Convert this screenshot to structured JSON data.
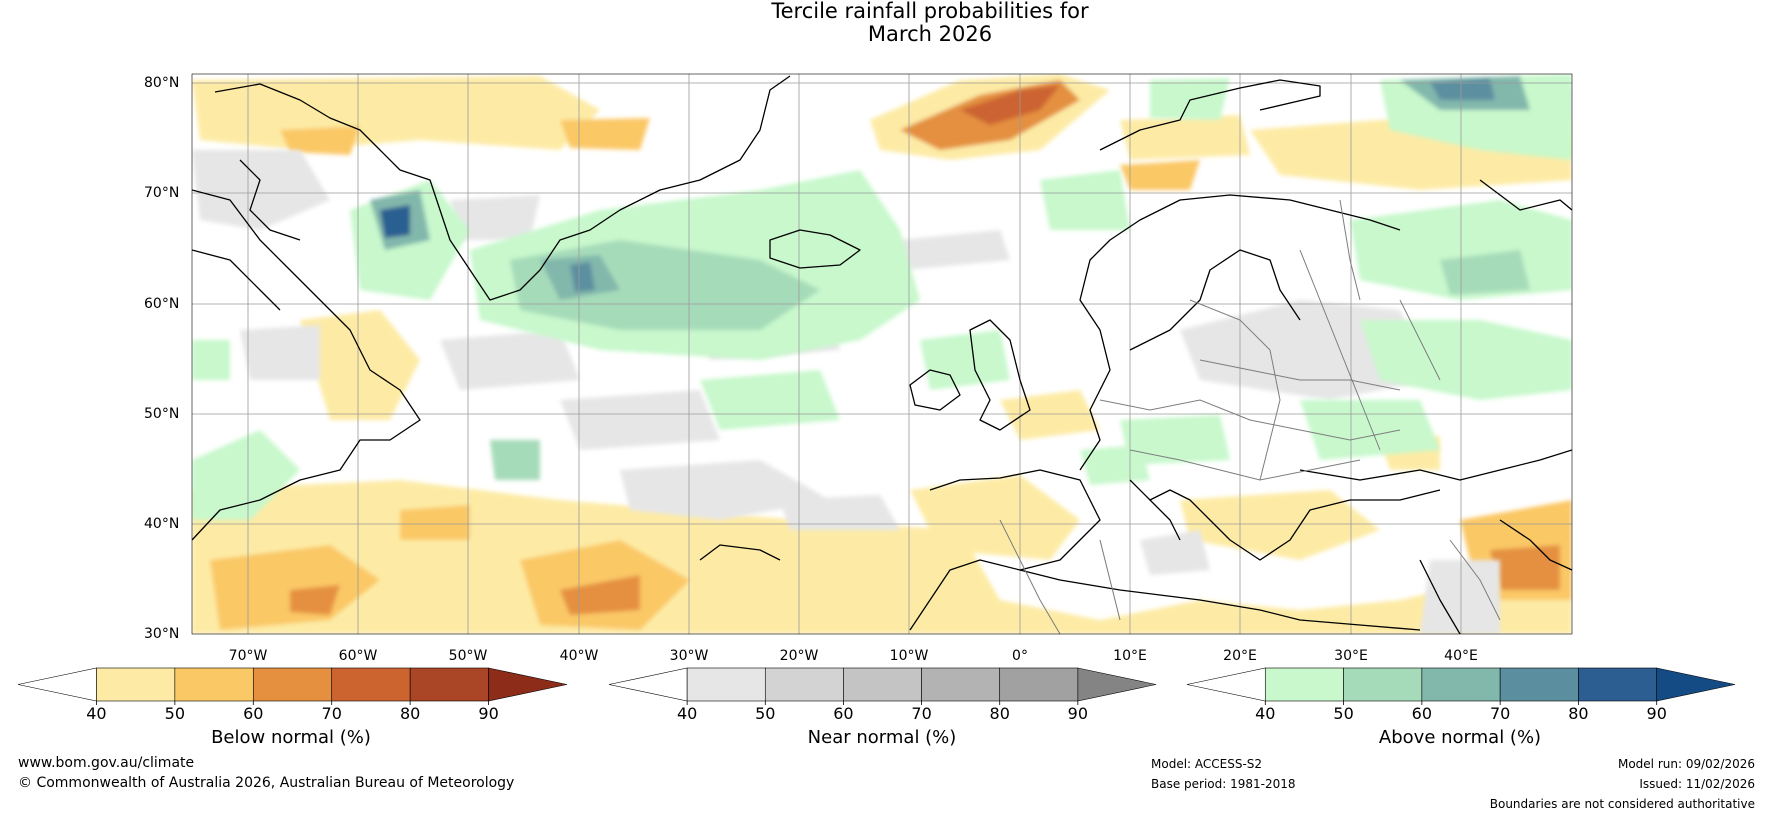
{
  "title": {
    "line1": "Tercile rainfall probabilities for",
    "line2": "March 2026"
  },
  "map": {
    "latitude_labels": [
      "80°N",
      "70°N",
      "60°N",
      "50°N",
      "40°N",
      "30°N"
    ],
    "longitude_labels": [
      "70°W",
      "60°W",
      "50°W",
      "40°W",
      "30°W",
      "20°W",
      "10°W",
      "0°",
      "10°E",
      "20°E",
      "30°E",
      "40°E"
    ]
  },
  "colorbars": [
    {
      "name": "below",
      "label": "Below normal (%)",
      "ticks": [
        "40",
        "50",
        "60",
        "70",
        "80",
        "90"
      ],
      "colors": [
        "#ffffff",
        "#fdeba5",
        "#fbc866",
        "#e4903f",
        "#cc6430",
        "#aa4525",
        "#8e2c1a"
      ]
    },
    {
      "name": "near",
      "label": "Near normal (%)",
      "ticks": [
        "40",
        "50",
        "60",
        "70",
        "80",
        "90"
      ],
      "colors": [
        "#ffffff",
        "#e6e6e6",
        "#d3d3d3",
        "#c4c4c4",
        "#b3b3b3",
        "#a1a1a1",
        "#848484"
      ]
    },
    {
      "name": "above",
      "label": "Above normal (%)",
      "ticks": [
        "40",
        "50",
        "60",
        "70",
        "80",
        "90"
      ],
      "colors": [
        "#ffffff",
        "#c8f8cc",
        "#a6dbb9",
        "#82b7ac",
        "#5b8fa0",
        "#2c5e91",
        "#144b84"
      ]
    }
  ],
  "footer": {
    "website": "www.bom.gov.au/climate",
    "copyright": "© Commonwealth of Australia 2026, Australian Bureau of Meteorology",
    "model": "Model: ACCESS-S2",
    "base_period": "Base period: 1981-2018",
    "model_run": "Model run: 09/02/2026",
    "issued": "Issued: 11/02/2026",
    "disclaimer": "Boundaries are not considered authoritative"
  }
}
